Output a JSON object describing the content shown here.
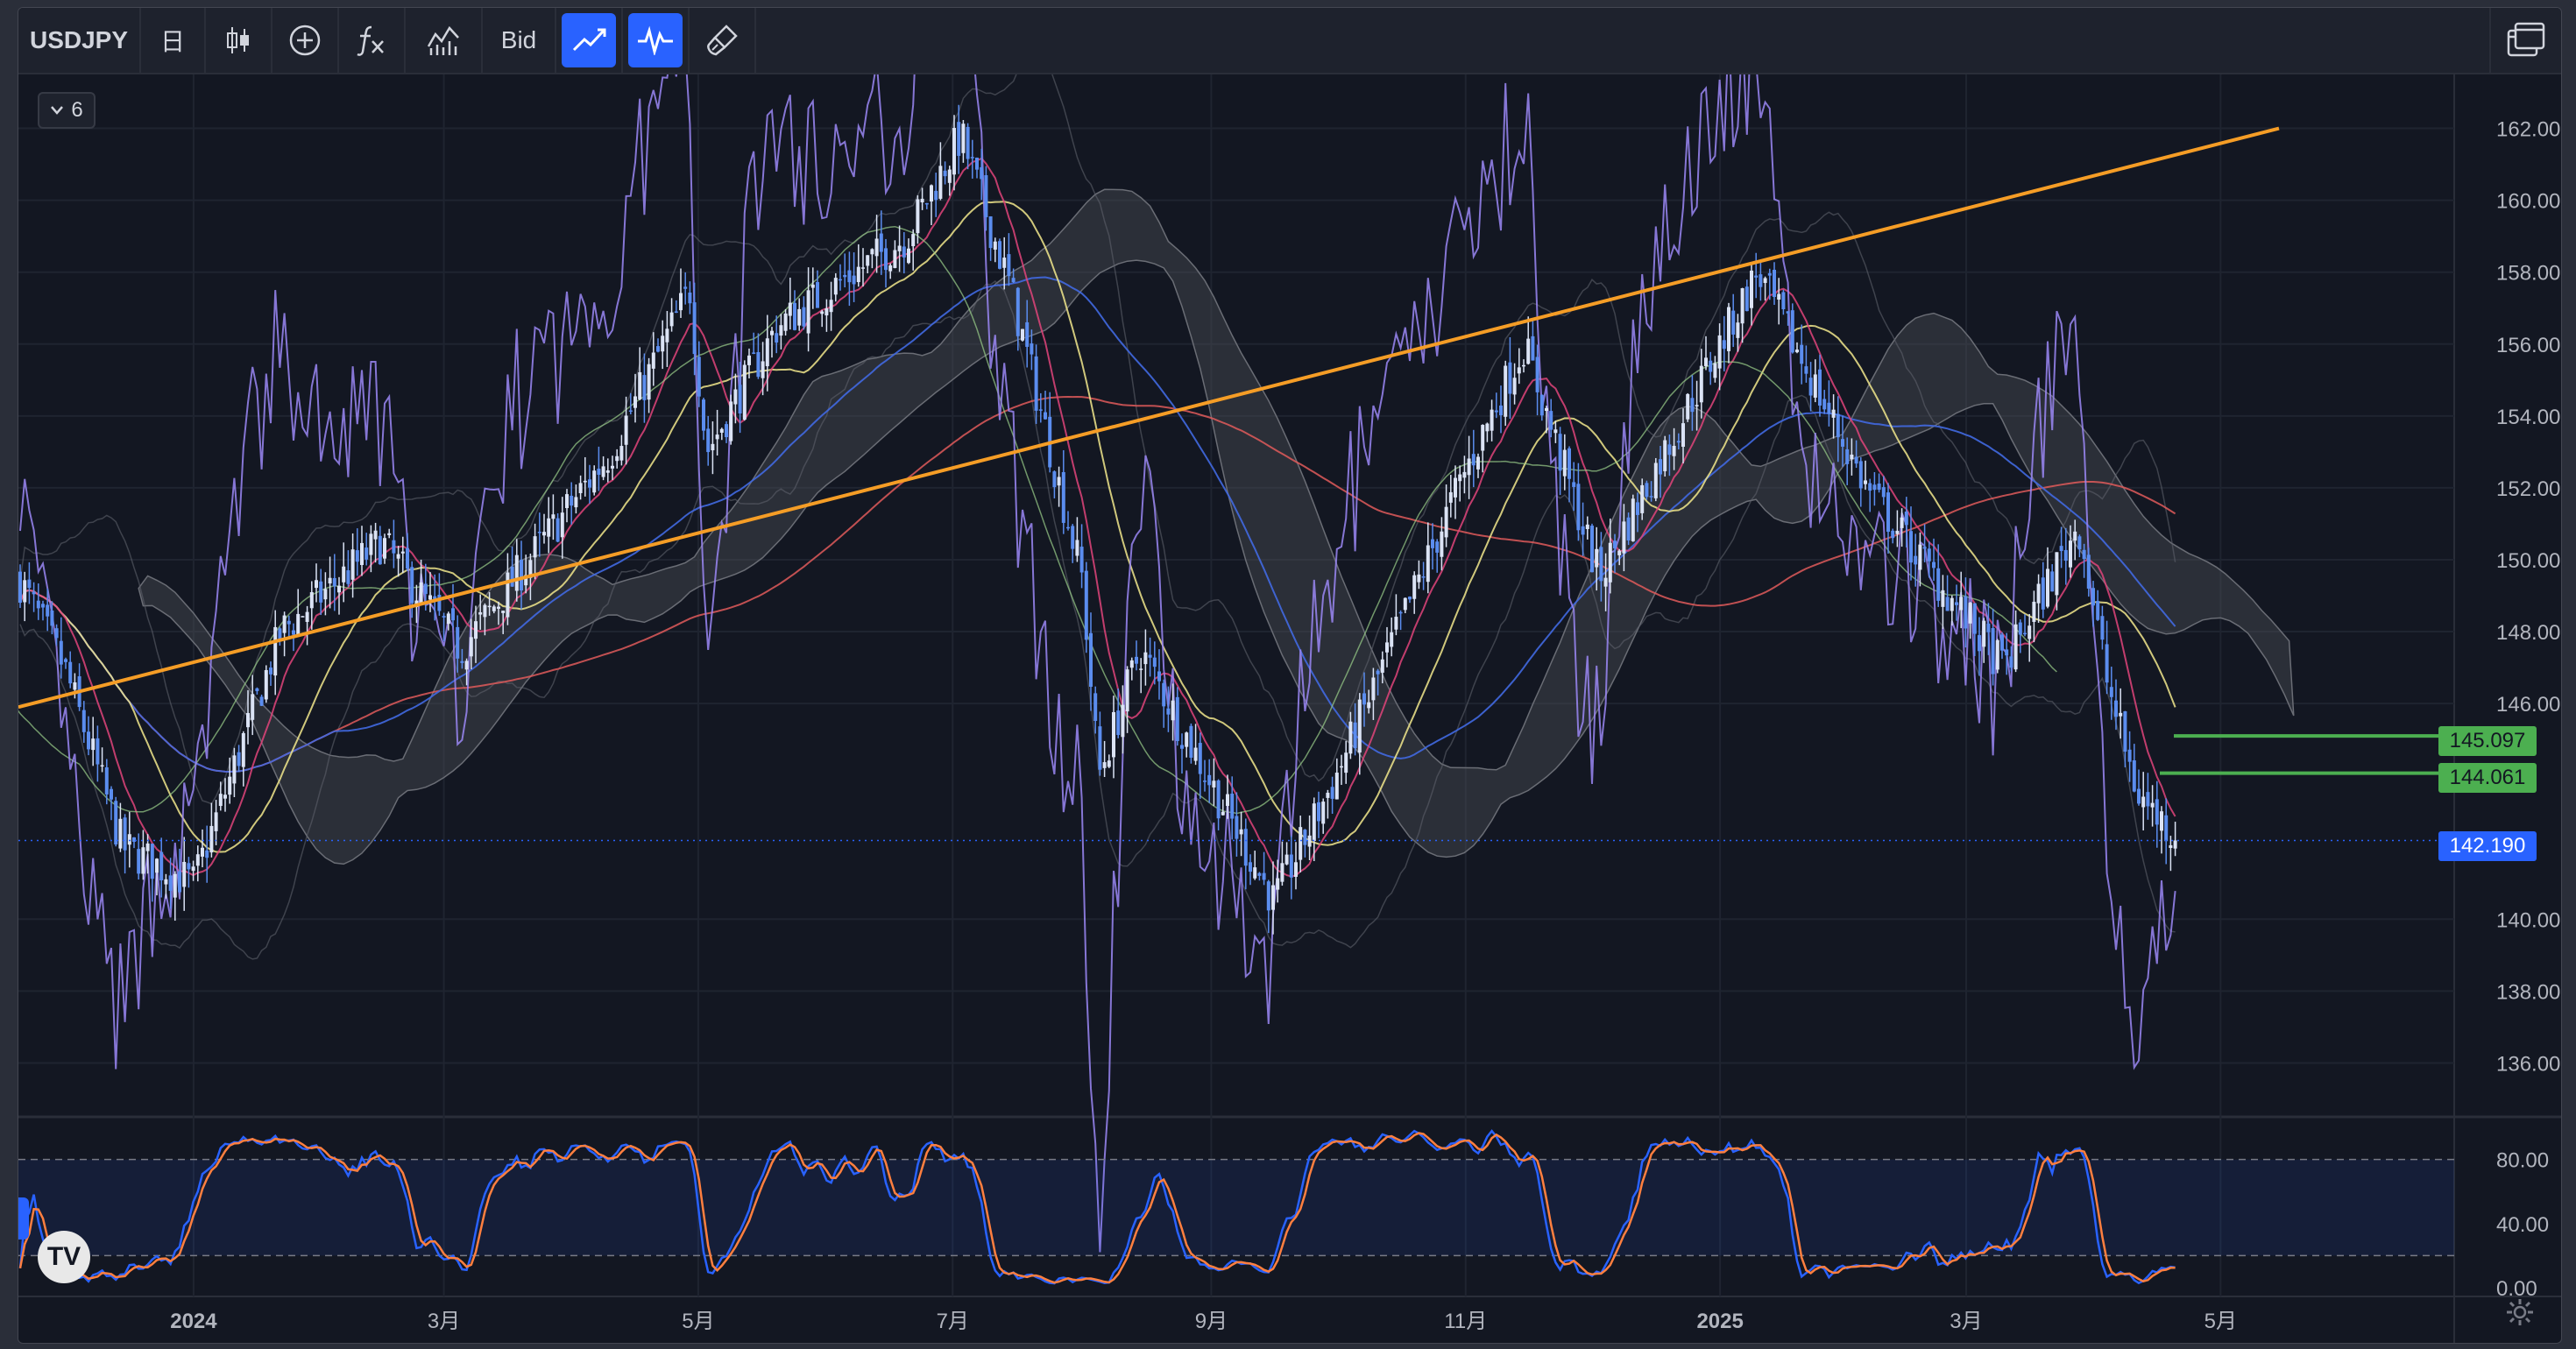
{
  "toolbar": {
    "symbol": "USDJPY",
    "interval": "日",
    "buttons": [
      {
        "name": "chart-type",
        "icon": "candles-icon"
      },
      {
        "name": "compare",
        "icon": "plus-circle-icon"
      },
      {
        "name": "indicators",
        "icon": "fx-icon"
      },
      {
        "name": "templates",
        "icon": "bars-template-icon"
      }
    ],
    "price_source": "Bid",
    "active_tools": [
      {
        "name": "trend-line",
        "icon": "trend-line-icon"
      },
      {
        "name": "oscillator",
        "icon": "pulse-icon"
      }
    ],
    "eraser_icon": "brush-icon",
    "layout_icon": "layout-windows-icon"
  },
  "legend": {
    "collapse_icon": "chevron-down-icon",
    "count": "6"
  },
  "price_axis": {
    "ticks": [
      "162.000",
      "160.000",
      "158.000",
      "156.000",
      "154.000",
      "152.000",
      "150.000",
      "148.000",
      "146.000",
      "140.000",
      "138.000",
      "136.000"
    ],
    "labels": [
      {
        "name": "alert-line-145",
        "value": "145.097",
        "price": 145.097,
        "color": "#4caf50"
      },
      {
        "name": "alert-line-144",
        "value": "144.061",
        "price": 144.061,
        "color": "#4caf50"
      },
      {
        "name": "last-price",
        "value": "142.190",
        "price": 142.19,
        "color": "#2962ff"
      }
    ]
  },
  "oscillator_axis": {
    "ticks": [
      "80.00",
      "40.00",
      "0.00"
    ]
  },
  "time_axis": {
    "ticks": [
      "2024",
      "3月",
      "5月",
      "7月",
      "9月",
      "11月",
      "2025",
      "3月",
      "5月"
    ],
    "bold": [
      true,
      false,
      false,
      false,
      false,
      false,
      true,
      false,
      false
    ]
  },
  "settings_icon": "gear-icon",
  "logo": "TV",
  "colors": {
    "background": "#131722",
    "toolbar": "#1e222d",
    "accent": "#2962ff",
    "candle": "#dbe3f5",
    "trendline": "#f59d26",
    "alert": "#4caf50",
    "cloud": "#4a4d55",
    "rsi_line": "#9b87f5",
    "stoch_k": "#2962ff",
    "stoch_d": "#ff7f3f"
  },
  "chart_data": {
    "type": "candlestick",
    "symbol": "USDJPY",
    "timeframe": "daily",
    "ylim": [
      134.5,
      163.5
    ],
    "last_price": 142.19,
    "close_path": [
      {
        "date": "2023-11-20",
        "value": 149.5
      },
      {
        "date": "2023-12-01",
        "value": 147.0
      },
      {
        "date": "2023-12-15",
        "value": 142.0
      },
      {
        "date": "2024-01-01",
        "value": 141.0
      },
      {
        "date": "2024-01-22",
        "value": 148.0
      },
      {
        "date": "2024-02-15",
        "value": 150.5
      },
      {
        "date": "2024-03-05",
        "value": 147.5
      },
      {
        "date": "2024-03-15",
        "value": 149.0
      },
      {
        "date": "2024-04-10",
        "value": 153.0
      },
      {
        "date": "2024-04-29",
        "value": 157.5
      },
      {
        "date": "2024-05-03",
        "value": 153.0
      },
      {
        "date": "2024-05-20",
        "value": 156.5
      },
      {
        "date": "2024-06-20",
        "value": 159.0
      },
      {
        "date": "2024-07-03",
        "value": 161.8
      },
      {
        "date": "2024-07-15",
        "value": 157.5
      },
      {
        "date": "2024-08-01",
        "value": 149.5
      },
      {
        "date": "2024-08-05",
        "value": 144.0
      },
      {
        "date": "2024-08-15",
        "value": 147.5
      },
      {
        "date": "2024-09-16",
        "value": 140.5
      },
      {
        "date": "2024-10-01",
        "value": 144.0
      },
      {
        "date": "2024-11-01",
        "value": 152.5
      },
      {
        "date": "2024-11-15",
        "value": 156.0
      },
      {
        "date": "2024-12-03",
        "value": 149.5
      },
      {
        "date": "2025-01-10",
        "value": 158.0
      },
      {
        "date": "2025-02-05",
        "value": 152.0
      },
      {
        "date": "2025-03-10",
        "value": 147.0
      },
      {
        "date": "2025-03-28",
        "value": 151.0
      },
      {
        "date": "2025-04-04",
        "value": 146.5
      },
      {
        "date": "2025-04-11",
        "value": 143.5
      },
      {
        "date": "2025-04-21",
        "value": 142.19
      }
    ],
    "trendline": [
      {
        "date": "2023-11-20",
        "value": 145.9
      },
      {
        "date": "2025-05-15",
        "value": 162.0
      }
    ],
    "horizontal_levels": [
      145.097,
      144.061
    ],
    "oscillator": {
      "type": "stochastic",
      "ylim": [
        0,
        100
      ],
      "bands": [
        80,
        20
      ]
    }
  }
}
